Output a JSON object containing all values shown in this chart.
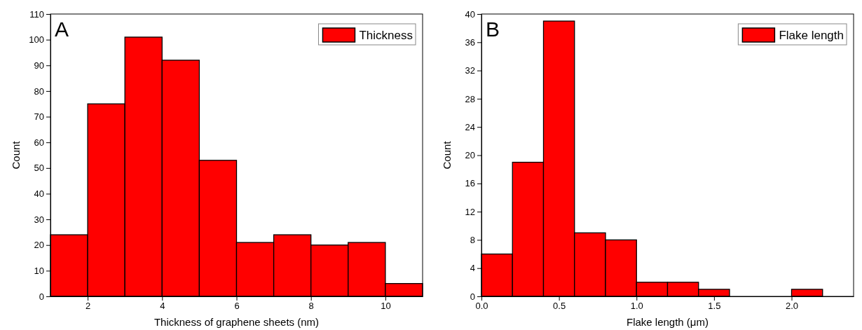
{
  "chart_data": [
    {
      "type": "histogram",
      "xlabel": "Thickness of graphene sheets (nm)",
      "ylabel": "Count",
      "annotations": [
        "A"
      ],
      "bins": [
        1,
        2,
        3,
        4,
        5,
        6,
        7,
        8,
        9,
        10,
        11
      ],
      "series": [
        {
          "name": "Thickness",
          "color": "#ff0000",
          "values": [
            24,
            75,
            101,
            92,
            53,
            21,
            24,
            20,
            21,
            5
          ]
        }
      ],
      "xlim": [
        1,
        11
      ],
      "xticks": [
        2,
        4,
        6,
        8,
        10
      ],
      "ylim": [
        0,
        110
      ],
      "yticks": [
        0,
        10,
        20,
        30,
        40,
        50,
        60,
        70,
        80,
        90,
        100,
        110
      ],
      "legend": "top right"
    },
    {
      "type": "histogram",
      "xlabel": "Flake length (μm)",
      "ylabel": "Count",
      "annotations": [
        "B"
      ],
      "bins": [
        0,
        0.2,
        0.4,
        0.6,
        0.8,
        1.0,
        1.2,
        1.4,
        1.6,
        1.8,
        2.0,
        2.2
      ],
      "series": [
        {
          "name": "Flake length",
          "color": "#ff0000",
          "values": [
            6,
            19,
            39,
            9,
            8,
            2,
            2,
            1,
            0,
            0,
            1
          ]
        }
      ],
      "xlim": [
        0,
        2.4
      ],
      "xticks": [
        {
          "value": 0,
          "label": "0.0"
        },
        {
          "value": 0.5,
          "label": "0.5"
        },
        {
          "value": 1,
          "label": "1.0"
        },
        {
          "value": 1.5,
          "label": "1.5"
        },
        {
          "value": 2,
          "label": "2.0"
        }
      ],
      "ylim": [
        0,
        40
      ],
      "yticks": [
        0,
        4,
        8,
        12,
        16,
        20,
        24,
        28,
        32,
        36,
        40
      ],
      "legend": "top right"
    }
  ]
}
